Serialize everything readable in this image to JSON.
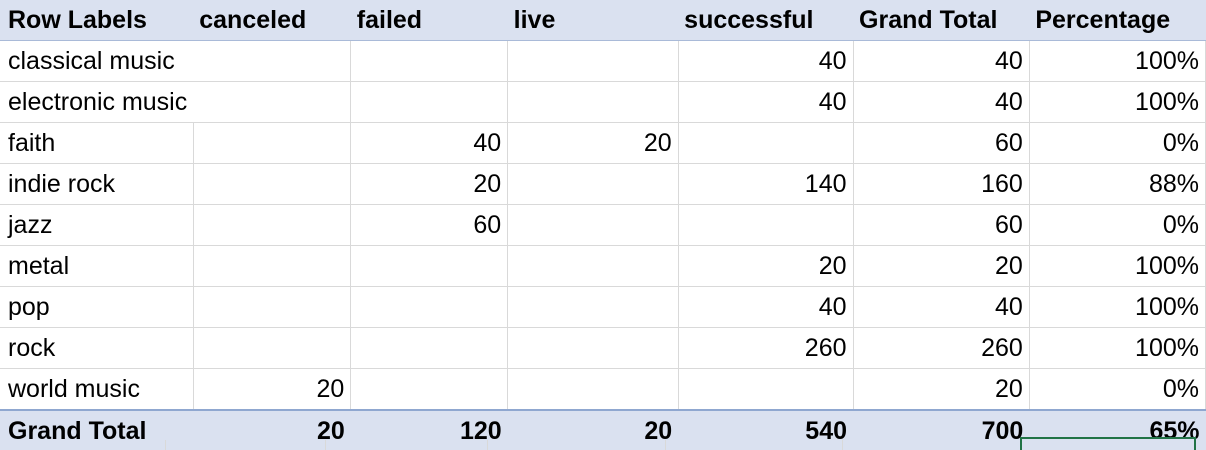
{
  "pivot": {
    "headers": [
      "Row Labels",
      "canceled",
      "failed",
      "live",
      "successful",
      "Grand Total",
      "Percentage"
    ],
    "rows": [
      {
        "label": "classical music",
        "canceled": "",
        "failed": "",
        "live": "",
        "successful": "40",
        "grand_total": "40",
        "percentage": "100%"
      },
      {
        "label": "electronic music",
        "canceled": "",
        "failed": "",
        "live": "",
        "successful": "40",
        "grand_total": "40",
        "percentage": "100%"
      },
      {
        "label": "faith",
        "canceled": "",
        "failed": "40",
        "live": "20",
        "successful": "",
        "grand_total": "60",
        "percentage": "0%"
      },
      {
        "label": "indie rock",
        "canceled": "",
        "failed": "20",
        "live": "",
        "successful": "140",
        "grand_total": "160",
        "percentage": "88%"
      },
      {
        "label": "jazz",
        "canceled": "",
        "failed": "60",
        "live": "",
        "successful": "",
        "grand_total": "60",
        "percentage": "0%"
      },
      {
        "label": "metal",
        "canceled": "",
        "failed": "",
        "live": "",
        "successful": "20",
        "grand_total": "20",
        "percentage": "100%"
      },
      {
        "label": "pop",
        "canceled": "",
        "failed": "",
        "live": "",
        "successful": "40",
        "grand_total": "40",
        "percentage": "100%"
      },
      {
        "label": "rock",
        "canceled": "",
        "failed": "",
        "live": "",
        "successful": "260",
        "grand_total": "260",
        "percentage": "100%"
      },
      {
        "label": "world music",
        "canceled": "20",
        "failed": "",
        "live": "",
        "successful": "",
        "grand_total": "20",
        "percentage": "0%"
      }
    ],
    "total": {
      "label": "Grand Total",
      "canceled": "20",
      "failed": "120",
      "live": "20",
      "successful": "540",
      "grand_total": "700",
      "percentage": "65%"
    }
  },
  "colors": {
    "header_fill": "#dae1f0",
    "total_border": "#8fa7d0",
    "gridline": "#d9d9d9",
    "selection": "#217346"
  }
}
